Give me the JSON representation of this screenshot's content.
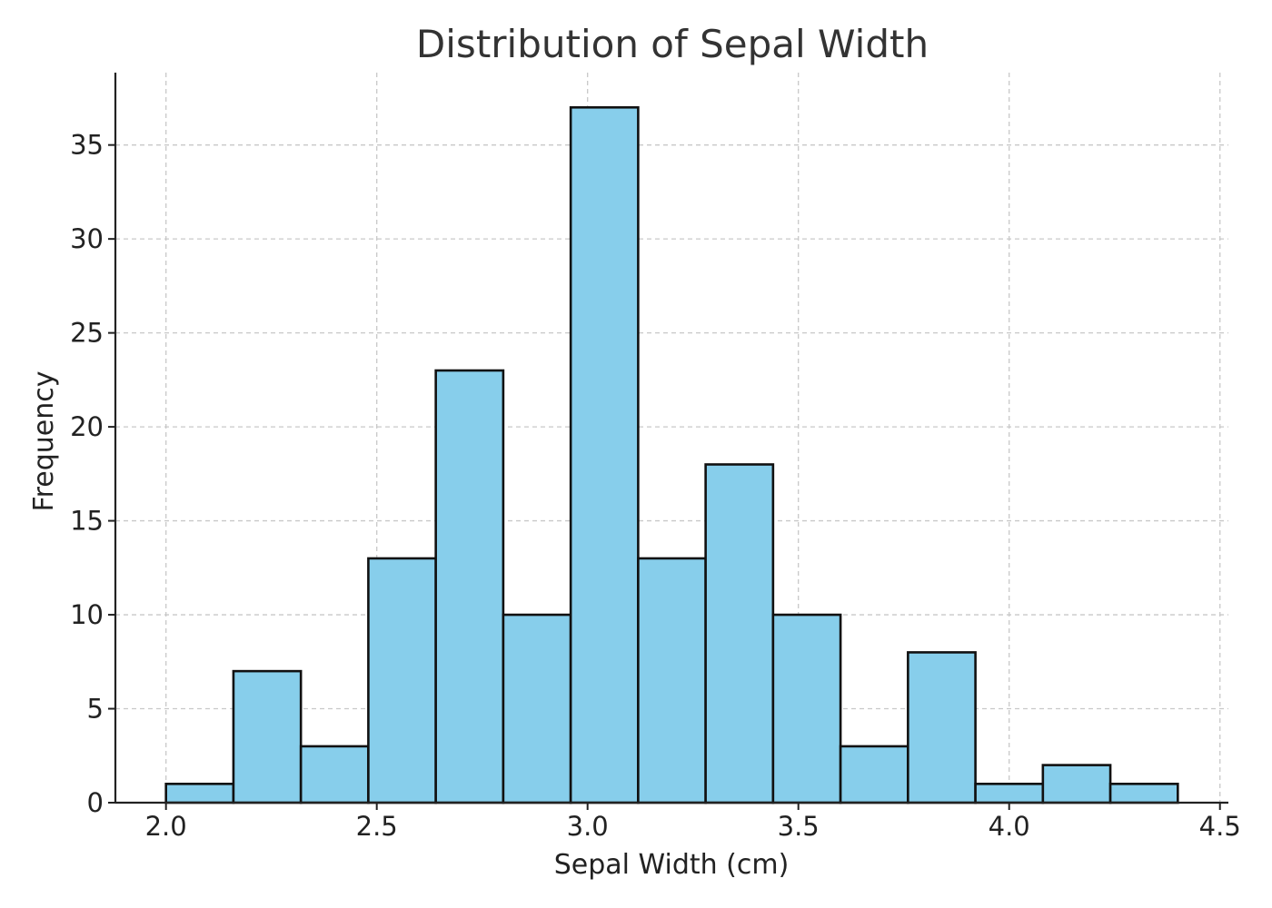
{
  "chart_data": {
    "type": "bar",
    "title": "Distribution of Sepal Width",
    "xlabel": "Sepal Width (cm)",
    "ylabel": "Frequency",
    "bins": {
      "start": 2.0,
      "end": 4.4,
      "count": 15
    },
    "values": [
      1,
      7,
      3,
      13,
      23,
      10,
      37,
      13,
      18,
      10,
      3,
      8,
      1,
      2,
      1
    ],
    "xlim": [
      1.88,
      4.52
    ],
    "ylim": [
      0,
      38.85
    ],
    "xticks": [
      2.0,
      2.5,
      3.0,
      3.5,
      4.0,
      4.5
    ],
    "xtick_labels": [
      "2.0",
      "2.5",
      "3.0",
      "3.5",
      "4.0",
      "4.5"
    ],
    "yticks": [
      0,
      5,
      10,
      15,
      20,
      25,
      30,
      35
    ],
    "ytick_labels": [
      "0",
      "5",
      "10",
      "15",
      "20",
      "25",
      "30",
      "35"
    ],
    "grid": true,
    "bar_color": "#87CEEB",
    "edge_color": "#111111"
  }
}
